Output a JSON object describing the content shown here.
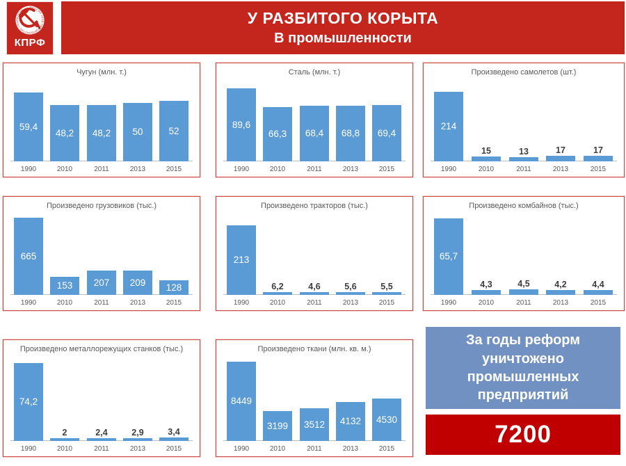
{
  "header": {
    "title": "У РАЗБИТОГО КОРЫТА",
    "subtitle": "В промышленности"
  },
  "logo": {
    "text": "КПРФ",
    "emblem_icon": "hammer-and-sickle-icon",
    "ring_text": "РОССИЯ ТРУД НАРОДОВЛАСТИЕ СОЦИАЛИЗМ"
  },
  "years": [
    "1990",
    "2010",
    "2011",
    "2013",
    "2015"
  ],
  "chart_data": [
    {
      "type": "bar",
      "title": "Чугун (млн. т.)",
      "categories": [
        "1990",
        "2010",
        "2011",
        "2013",
        "2015"
      ],
      "values": [
        59.4,
        48.2,
        48.2,
        50,
        52
      ],
      "value_labels": [
        "59,4",
        "48,2",
        "48,2",
        "50",
        "52"
      ],
      "ylim": [
        0,
        70
      ],
      "grid": false,
      "legend": "none"
    },
    {
      "type": "bar",
      "title": "Сталь (млн. т.)",
      "categories": [
        "1990",
        "2010",
        "2011",
        "2013",
        "2015"
      ],
      "values": [
        89.6,
        66.3,
        68.4,
        68.8,
        69.4
      ],
      "value_labels": [
        "89,6",
        "66,3",
        "68,4",
        "68,8",
        "69,4"
      ],
      "ylim": [
        0,
        100
      ],
      "grid": false,
      "legend": "none"
    },
    {
      "type": "bar",
      "title": "Произведено самолетов (шт.)",
      "categories": [
        "1990",
        "2010",
        "2011",
        "2013",
        "2015"
      ],
      "values": [
        214,
        15,
        13,
        17,
        17
      ],
      "value_labels": [
        "214",
        "15",
        "13",
        "17",
        "17"
      ],
      "ylim": [
        0,
        250
      ],
      "grid": false,
      "legend": "none"
    },
    {
      "type": "bar",
      "title": "Произведено грузовиков (тыс.)",
      "categories": [
        "1990",
        "2010",
        "2011",
        "2013",
        "2015"
      ],
      "values": [
        665,
        153,
        207,
        209,
        128
      ],
      "value_labels": [
        "665",
        "153",
        "207",
        "209",
        "128"
      ],
      "ylim": [
        0,
        700
      ],
      "grid": false,
      "legend": "none"
    },
    {
      "type": "bar",
      "title": "Произведено тракторов (тыс.)",
      "categories": [
        "1990",
        "2010",
        "2011",
        "2013",
        "2015"
      ],
      "values": [
        213,
        6.2,
        4.6,
        5.6,
        5.5
      ],
      "value_labels": [
        "213",
        "6,2",
        "4,6",
        "5,6",
        "5,5"
      ],
      "ylim": [
        0,
        250
      ],
      "grid": false,
      "legend": "none"
    },
    {
      "type": "bar",
      "title": "Произведено комбайнов (тыс.)",
      "categories": [
        "1990",
        "2010",
        "2011",
        "2013",
        "2015"
      ],
      "values": [
        65.7,
        4.3,
        4.5,
        4.2,
        4.4
      ],
      "value_labels": [
        "65,7",
        "4,3",
        "4,5",
        "4,2",
        "4,4"
      ],
      "ylim": [
        0,
        70
      ],
      "grid": false,
      "legend": "none"
    },
    {
      "type": "bar",
      "title": "Произведено металлорежущих станков (тыс.)",
      "categories": [
        "1990",
        "2010",
        "2011",
        "2013",
        "2015"
      ],
      "values": [
        74.2,
        2,
        2.4,
        2.9,
        3.4
      ],
      "value_labels": [
        "74,2",
        "2",
        "2,4",
        "2,9",
        "3,4"
      ],
      "ylim": [
        0,
        80
      ],
      "grid": false,
      "legend": "none"
    },
    {
      "type": "bar",
      "title": "Произведено ткани (млн. кв. м.)",
      "categories": [
        "1990",
        "2010",
        "2011",
        "2013",
        "2015"
      ],
      "values": [
        8449,
        3199,
        3512,
        4132,
        4530
      ],
      "value_labels": [
        "8449",
        "3199",
        "3512",
        "4132",
        "4530"
      ],
      "ylim": [
        0,
        9000
      ],
      "grid": false,
      "legend": "none"
    }
  ],
  "summary": {
    "caption": "За годы реформ уничтожено промышленных предприятий",
    "value": "7200"
  },
  "colors": {
    "header_red": "#c4261d",
    "panel_border_red": "#cb4a44",
    "bar_blue": "#5b9bd5",
    "summary_blue": "#7091c1",
    "summary_red": "#c00000",
    "text_gray": "#595959",
    "value_dark": "#3d3d3d"
  }
}
